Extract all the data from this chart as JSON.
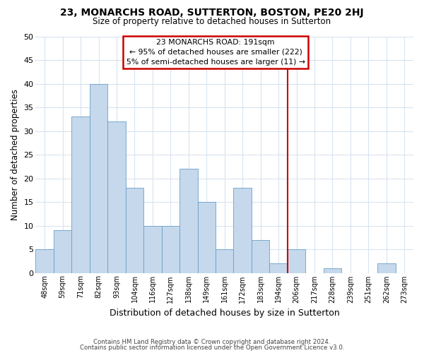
{
  "title": "23, MONARCHS ROAD, SUTTERTON, BOSTON, PE20 2HJ",
  "subtitle": "Size of property relative to detached houses in Sutterton",
  "xlabel": "Distribution of detached houses by size in Sutterton",
  "ylabel": "Number of detached properties",
  "footer1": "Contains HM Land Registry data © Crown copyright and database right 2024.",
  "footer2": "Contains public sector information licensed under the Open Government Licence v3.0.",
  "bin_labels": [
    "48sqm",
    "59sqm",
    "71sqm",
    "82sqm",
    "93sqm",
    "104sqm",
    "116sqm",
    "127sqm",
    "138sqm",
    "149sqm",
    "161sqm",
    "172sqm",
    "183sqm",
    "194sqm",
    "206sqm",
    "217sqm",
    "228sqm",
    "239sqm",
    "251sqm",
    "262sqm",
    "273sqm"
  ],
  "bar_heights": [
    5,
    9,
    33,
    40,
    32,
    18,
    10,
    10,
    22,
    15,
    5,
    18,
    7,
    2,
    5,
    0,
    1,
    0,
    0,
    2,
    0
  ],
  "bar_color": "#c5d8ec",
  "bar_edge_color": "#6aa0c8",
  "vline_x": 13.5,
  "vline_color": "#cc0000",
  "annotation_title": "23 MONARCHS ROAD: 191sqm",
  "annotation_line2": "← 95% of detached houses are smaller (222)",
  "annotation_line3": "5% of semi-detached houses are larger (11) →",
  "annotation_box_color": "#ffffff",
  "annotation_box_edge": "#cc0000",
  "ylim": [
    0,
    50
  ],
  "yticks": [
    0,
    5,
    10,
    15,
    20,
    25,
    30,
    35,
    40,
    45,
    50
  ],
  "bg_color": "#ffffff",
  "plot_bg_color": "#ffffff",
  "grid_color": "#d8e4f0"
}
